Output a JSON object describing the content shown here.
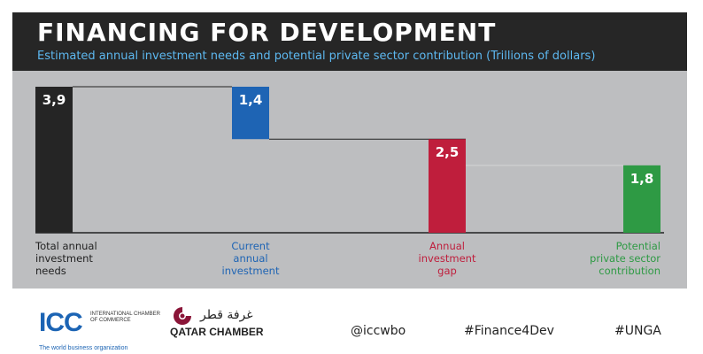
{
  "header": {
    "title": "FINANCING FOR DEVELOPMENT",
    "subtitle": "Estimated annual investment needs and potential private sector contribution (Trillions of dollars)"
  },
  "chart_data": {
    "type": "bar",
    "title": "FINANCING FOR DEVELOPMENT",
    "subtitle": "Estimated annual investment needs and potential private sector contribution (Trillions of dollars)",
    "ylim": [
      0,
      3.9
    ],
    "grid": false,
    "legend": "none",
    "bars": [
      {
        "label_lines": [
          "Total annual",
          "investment",
          "needs"
        ],
        "value": 3.9,
        "base": 0,
        "value_label": "3,9",
        "color": "#252525",
        "label_color": "#222222"
      },
      {
        "label_lines": [
          "Current",
          "annual",
          "investment"
        ],
        "value": 1.4,
        "base": 2.5,
        "value_label": "1,4",
        "color": "#1e64b4",
        "label_color": "#1e64b4"
      },
      {
        "label_lines": [
          "Annual",
          "investment",
          "gap"
        ],
        "value": 2.5,
        "base": 0,
        "value_label": "2,5",
        "color": "#bf1e3c",
        "label_color": "#bf1e3c"
      },
      {
        "label_lines": [
          "Potential",
          "private sector",
          "contribution"
        ],
        "value": 1.8,
        "base": 0,
        "value_label": "1,8",
        "color": "#2e9a44",
        "label_color": "#2e9a44"
      }
    ]
  },
  "footer": {
    "icc_mark": "ICC",
    "icc_name": "INTERNATIONAL CHAMBER OF COMMERCE",
    "icc_tagline": "The world business organization",
    "qatar_arabic": "غرفة قطر",
    "qatar_name": "QATAR CHAMBER",
    "handle": "@iccwbo",
    "hashtag1": "#Finance4Dev",
    "hashtag2": "#UNGA"
  }
}
